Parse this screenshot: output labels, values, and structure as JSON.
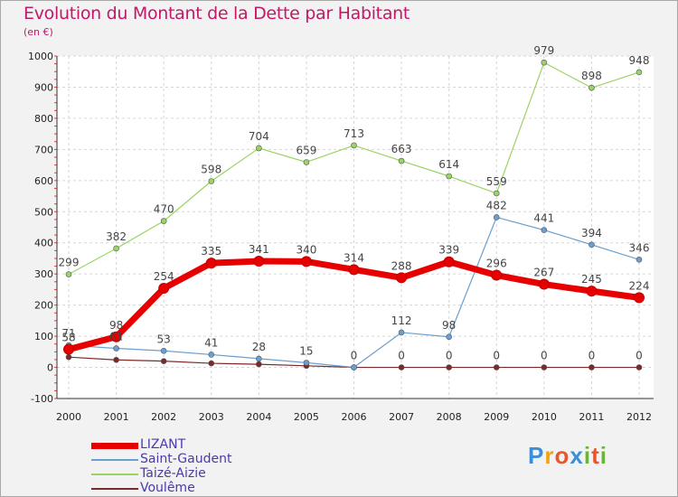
{
  "header": {
    "title": "Evolution du Montant de la Dette par Habitant",
    "unit": "(en €)"
  },
  "chart_data": {
    "type": "line",
    "title": "Evolution du Montant de la Dette par Habitant",
    "ylabel": "(en €)",
    "xlabel": "",
    "x": [
      "2000",
      "2001",
      "2002",
      "2003",
      "2004",
      "2005",
      "2006",
      "2007",
      "2008",
      "2009",
      "2010",
      "2011",
      "2012"
    ],
    "ylim": [
      -100,
      1000
    ],
    "yticks": [
      -100,
      0,
      100,
      200,
      300,
      400,
      500,
      600,
      700,
      800,
      900,
      1000
    ],
    "grid": true,
    "series": [
      {
        "name": "LIZANT",
        "color": "#e60000",
        "values": [
          58,
          98,
          254,
          335,
          341,
          340,
          314,
          288,
          339,
          296,
          267,
          245,
          224
        ]
      },
      {
        "name": "Saint-Gaudent",
        "color": "#6a9fd0",
        "values": [
          71,
          61,
          53,
          41,
          28,
          15,
          0,
          112,
          98,
          482,
          441,
          394,
          346
        ]
      },
      {
        "name": "Taizé-Aizie",
        "color": "#9ad464",
        "values": [
          299,
          382,
          470,
          598,
          704,
          659,
          713,
          663,
          614,
          559,
          979,
          898,
          948
        ]
      },
      {
        "name": "Voulême",
        "color": "#7a2a2a",
        "values": [
          33,
          24,
          20,
          13,
          10,
          5,
          0,
          0,
          0,
          0,
          0,
          0,
          0
        ]
      }
    ]
  },
  "logo": {
    "letters": [
      "P",
      "r",
      "o",
      "x",
      "i",
      "t",
      "i"
    ],
    "colors": [
      "#3a8fd8",
      "#f2a20c",
      "#e8562a",
      "#3a8fd8",
      "#6cb33e",
      "#e8562a",
      "#6cb33e"
    ]
  }
}
